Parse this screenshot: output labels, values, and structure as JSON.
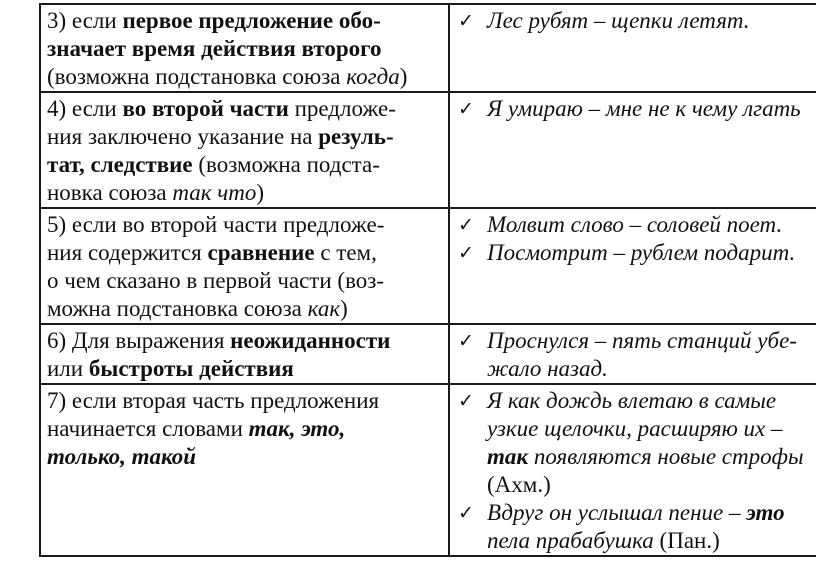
{
  "page": {
    "background": "#ffffff",
    "text_color": "#111111",
    "border_color": "#1a1a1a"
  },
  "icons": {
    "check": "✓"
  },
  "table": {
    "rows": [
      {
        "rule_lines": [
          [
            {
              "t": "3) если ",
              "s": "r"
            },
            {
              "t": "первое предложение обо-",
              "s": "b"
            }
          ],
          [
            {
              "t": "значает время действия второго",
              "s": "b"
            }
          ],
          [
            {
              "t": "(возможна подстановка союза ",
              "s": "r"
            },
            {
              "t": "когда",
              "s": "i"
            },
            {
              "t": ")",
              "s": "r"
            }
          ]
        ],
        "examples": [
          {
            "lines": [
              [
                {
                  "t": "Лес рубят – щепки летят.",
                  "s": "i"
                }
              ]
            ]
          }
        ]
      },
      {
        "rule_lines": [
          [
            {
              "t": "4) если ",
              "s": "r"
            },
            {
              "t": "во второй части",
              "s": "b"
            },
            {
              "t": " предложе-",
              "s": "r"
            }
          ],
          [
            {
              "t": "ния заключено указание на ",
              "s": "r"
            },
            {
              "t": "резуль-",
              "s": "b"
            }
          ],
          [
            {
              "t": "тат, следствие",
              "s": "b"
            },
            {
              "t": " (возможна подста-",
              "s": "r"
            }
          ],
          [
            {
              "t": "новка союза ",
              "s": "r"
            },
            {
              "t": "так что",
              "s": "i"
            },
            {
              "t": ")",
              "s": "r"
            }
          ]
        ],
        "examples": [
          {
            "lines": [
              [
                {
                  "t": "Я умираю – мне не к чему лгать",
                  "s": "i"
                }
              ]
            ]
          }
        ]
      },
      {
        "rule_lines": [
          [
            {
              "t": "5) если во второй части предложе-",
              "s": "r"
            }
          ],
          [
            {
              "t": "ния содержится ",
              "s": "r"
            },
            {
              "t": "сравнение",
              "s": "b"
            },
            {
              "t": " с тем,",
              "s": "r"
            }
          ],
          [
            {
              "t": "о чем сказано в первой части (воз-",
              "s": "r"
            }
          ],
          [
            {
              "t": "можна подстановка союза ",
              "s": "r"
            },
            {
              "t": "как",
              "s": "i"
            },
            {
              "t": ")",
              "s": "r"
            }
          ]
        ],
        "examples": [
          {
            "lines": [
              [
                {
                  "t": "Молвит слово – соловей поет.",
                  "s": "i"
                }
              ]
            ]
          },
          {
            "lines": [
              [
                {
                  "t": "Посмотрит – рублем подарит.",
                  "s": "i"
                }
              ]
            ]
          }
        ]
      },
      {
        "rule_lines": [
          [
            {
              "t": "6) Для выражения ",
              "s": "r"
            },
            {
              "t": "неожиданности",
              "s": "b"
            }
          ],
          [
            {
              "t": "или ",
              "s": "r"
            },
            {
              "t": "быстроты действия",
              "s": "b"
            }
          ]
        ],
        "examples": [
          {
            "lines": [
              [
                {
                  "t": "Проснулся – пять станций убе-",
                  "s": "i"
                }
              ],
              [
                {
                  "t": "жало назад.",
                  "s": "i"
                }
              ]
            ]
          }
        ]
      },
      {
        "rule_lines": [
          [
            {
              "t": "7) если вторая часть предложения",
              "s": "r"
            }
          ],
          [
            {
              "t": "начинается словами ",
              "s": "r"
            },
            {
              "t": "так, это,",
              "s": "bi"
            }
          ],
          [
            {
              "t": "только, такой",
              "s": "bi"
            }
          ]
        ],
        "examples": [
          {
            "lines": [
              [
                {
                  "t": "Я как дождь влетаю в самые",
                  "s": "i"
                }
              ],
              [
                {
                  "t": "узкие щелочки, расширяю их –",
                  "s": "i"
                }
              ],
              [
                {
                  "t": "так",
                  "s": "bi"
                },
                {
                  "t": " появляются новые строфы",
                  "s": "i"
                }
              ],
              [
                {
                  "t": "(Ахм.)",
                  "s": "r"
                }
              ]
            ]
          },
          {
            "lines": [
              [
                {
                  "t": "Вдруг он услышал пение – ",
                  "s": "i"
                },
                {
                  "t": "это",
                  "s": "bi"
                }
              ],
              [
                {
                  "t": "пела прабабушка ",
                  "s": "i"
                },
                {
                  "t": "(Пан.)",
                  "s": "r"
                }
              ]
            ]
          }
        ]
      }
    ]
  }
}
